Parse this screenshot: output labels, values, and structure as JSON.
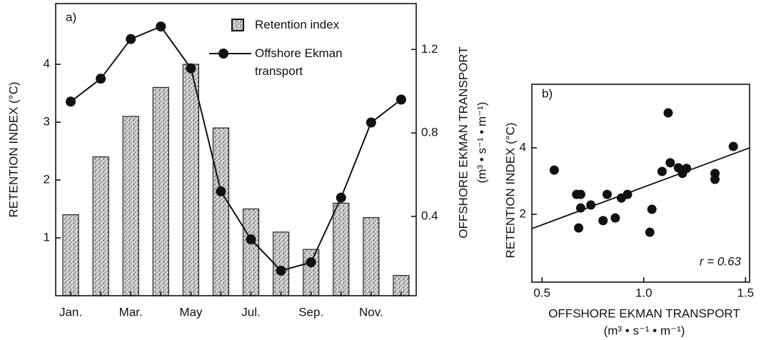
{
  "chart_data": [
    {
      "type": "bar_line",
      "panel_label": "a)",
      "categories": [
        "Jan.",
        null,
        "Mar.",
        null,
        "May",
        null,
        "Jul.",
        null,
        "Sep.",
        null,
        "Nov.",
        null
      ],
      "ylabel": "RETENTION INDEX (°C)",
      "y2label": [
        "OFFSHORE EKMAN TRANSPORT",
        "(m³ • s⁻¹ • m⁻¹)"
      ],
      "ylim": [
        0,
        5.05
      ],
      "yticks": [
        1,
        2,
        3,
        4
      ],
      "y2lim": [
        0.02,
        1.42
      ],
      "y2ticks": [
        0.4,
        0.8,
        1.2
      ],
      "series": [
        {
          "name": "Retention index",
          "kind": "bar",
          "color": "#bdbdbd",
          "values": [
            1.4,
            2.4,
            3.1,
            3.6,
            4.0,
            2.9,
            1.5,
            1.1,
            0.8,
            1.6,
            1.35,
            0.35
          ]
        },
        {
          "name": "Offshore Ekman transport",
          "kind": "line",
          "axis": "y2",
          "color": "#111111",
          "values": [
            0.95,
            1.06,
            1.25,
            1.31,
            1.11,
            0.52,
            0.29,
            0.14,
            0.18,
            0.49,
            0.85,
            0.96
          ]
        }
      ]
    },
    {
      "type": "scatter",
      "panel_label": "b)",
      "xlabel": [
        "OFFSHORE EKMAN TRANSPORT",
        "(m³ • s⁻¹ • m⁻¹)"
      ],
      "ylabel": "RETENTION INDEX (°C)",
      "annotation": "r = 0.63",
      "xlim": [
        0.45,
        1.52
      ],
      "xticks": [
        0.5,
        {
          "value": 1.0,
          "label": "1.0"
        },
        1.5
      ],
      "ylim": [
        -0.04,
        5.91
      ],
      "yticks": [
        2,
        4
      ],
      "color": "#111111",
      "x": [
        0.68,
        0.56,
        0.67,
        0.69,
        0.69,
        0.74,
        0.8,
        0.82,
        0.86,
        0.89,
        0.92,
        1.03,
        1.04,
        1.09,
        1.12,
        1.13,
        1.17,
        1.19,
        1.21,
        1.35,
        1.35,
        1.44
      ],
      "values": [
        1.59,
        3.33,
        2.6,
        2.6,
        2.19,
        2.28,
        1.81,
        2.6,
        1.89,
        2.49,
        2.6,
        1.46,
        2.15,
        3.29,
        5.05,
        3.55,
        3.4,
        3.23,
        3.38,
        3.23,
        3.05,
        4.04
      ],
      "fit_line": {
        "x": [
          0.45,
          1.52
        ],
        "y": [
          1.57,
          4.0
        ]
      }
    }
  ]
}
